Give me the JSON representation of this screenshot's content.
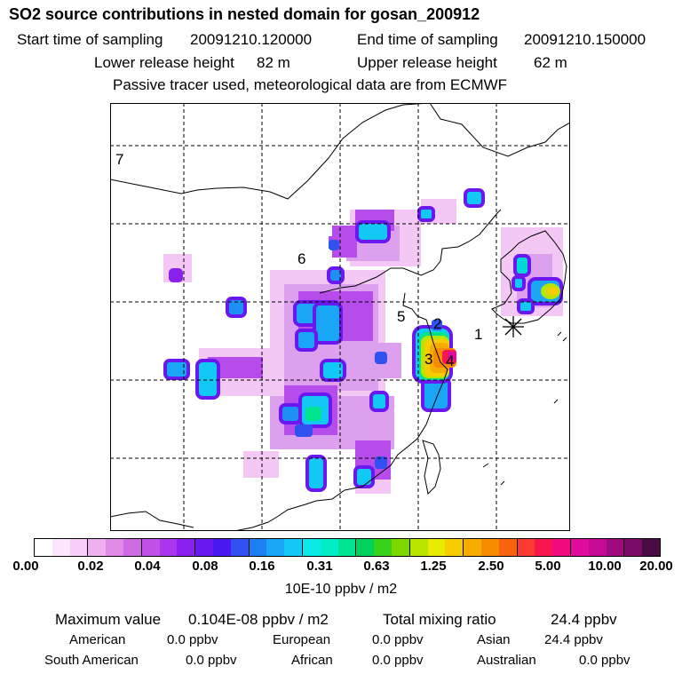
{
  "title": "SO2 source contributions in nested domain for gosan_200912",
  "header": {
    "start_label": "Start time of sampling",
    "start_value": "20091210.120000",
    "end_label": "End time of sampling",
    "end_value": "20091210.150000",
    "lower_label": "Lower release height",
    "lower_value": "82 m",
    "upper_label": "Upper release height",
    "upper_value": "62 m",
    "note": "Passive tracer used, meteorological data are from ECMWF"
  },
  "map": {
    "region_labels": [
      "1",
      "2",
      "3",
      "4",
      "5",
      "6",
      "7"
    ],
    "receptor_marker": "receptor-star-icon"
  },
  "colorbar": {
    "ticks": [
      "0.00",
      "0.02",
      "0.04",
      "0.08",
      "0.16",
      "0.31",
      "0.63",
      "1.25",
      "2.50",
      "5.00",
      "10.00",
      "20.00"
    ],
    "units": "10E-10 ppbv / m2",
    "colors": [
      "#ffffff",
      "#fde6fd",
      "#f9cdf9",
      "#f0b0f0",
      "#e08ae8",
      "#cf6ae5",
      "#c050e8",
      "#a936eb",
      "#8a20ee",
      "#6a18f0",
      "#4a18f2",
      "#3050f0",
      "#1e7ff5",
      "#19a6f7",
      "#12c8f5",
      "#07eae8",
      "#00eec5",
      "#00e48f",
      "#00d35a",
      "#39d21a",
      "#7ed800",
      "#b8e400",
      "#e8ea00",
      "#f5cd00",
      "#f6ad00",
      "#f78b00",
      "#f86310",
      "#f83a30",
      "#f9164f",
      "#f00a80",
      "#e00a9c",
      "#c40a94",
      "#a00a80",
      "#7a0a66",
      "#4a0a44"
    ]
  },
  "stats": {
    "max_label": "Maximum value",
    "max_value": "0.104E-08 ppbv / m2",
    "total_label": "Total mixing ratio",
    "total_value": "24.4 ppbv",
    "american_label": "American",
    "american_value": "0.0 ppbv",
    "european_label": "European",
    "european_value": "0.0 ppbv",
    "asian_label": "Asian",
    "asian_value": "24.4 ppbv",
    "south_american_label": "South American",
    "south_american_value": "0.0 ppbv",
    "african_label": "African",
    "african_value": "0.0 ppbv",
    "australian_label": "Australian",
    "australian_value": "0.0 ppbv"
  }
}
